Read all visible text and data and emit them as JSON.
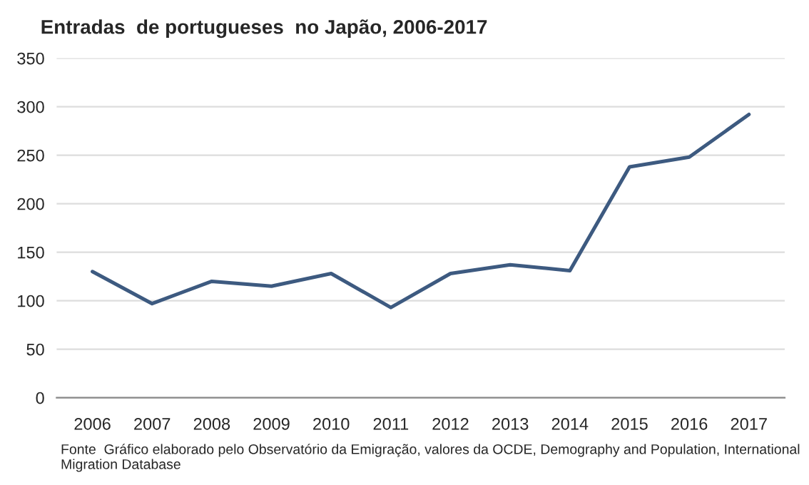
{
  "chart_data": {
    "type": "line",
    "title": "Entradas  de portugueses  no Japão, 2006-2017",
    "categories": [
      "2006",
      "2007",
      "2008",
      "2009",
      "2010",
      "2011",
      "2012",
      "2013",
      "2014",
      "2015",
      "2016",
      "2017"
    ],
    "series": [
      {
        "color": "#3d5a80",
        "values": [
          130,
          97,
          120,
          115,
          128,
          93,
          128,
          137,
          131,
          238,
          248,
          292
        ]
      }
    ],
    "ylim": [
      0,
      350
    ],
    "yticks": [
      0,
      50,
      100,
      150,
      200,
      250,
      300,
      350
    ],
    "grid": "y",
    "legend": false,
    "annotations": [
      "Fonte  Gráfico elaborado pelo Observatório da Emigração, valores da OCDE, Demography and Population, International Migration Database"
    ]
  }
}
